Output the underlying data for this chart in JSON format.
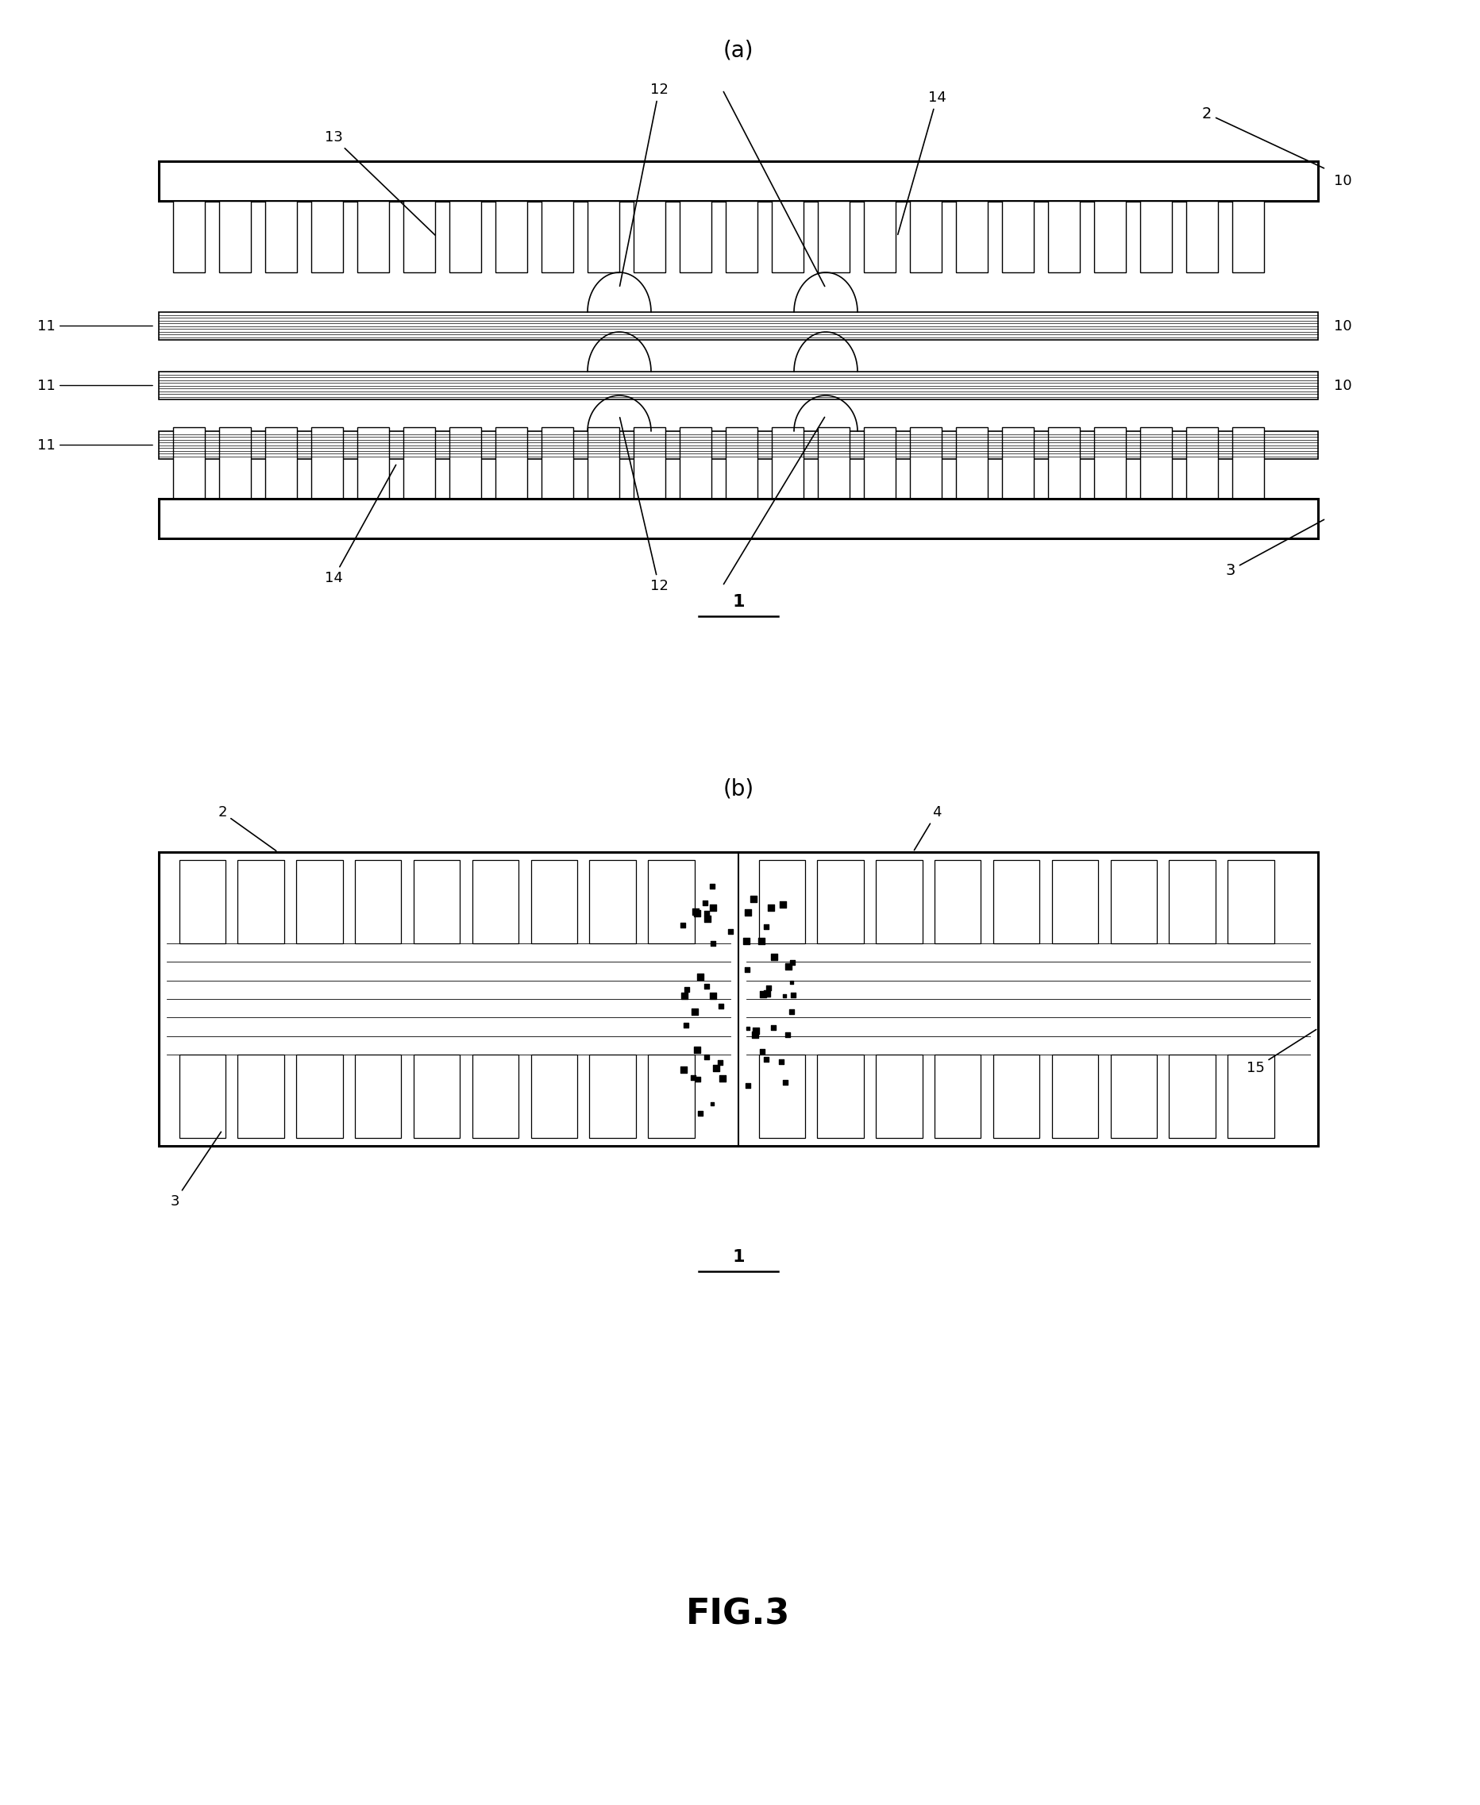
{
  "bg_color": "#ffffff",
  "line_color": "#000000",
  "fig_title": "FIG.3",
  "label_a": "(a)",
  "label_b": "(b)",
  "label_1": "1",
  "fig_width": 18.65,
  "fig_height": 22.73,
  "lw_thick": 2.2,
  "lw_med": 1.5,
  "lw_thin": 1.0
}
